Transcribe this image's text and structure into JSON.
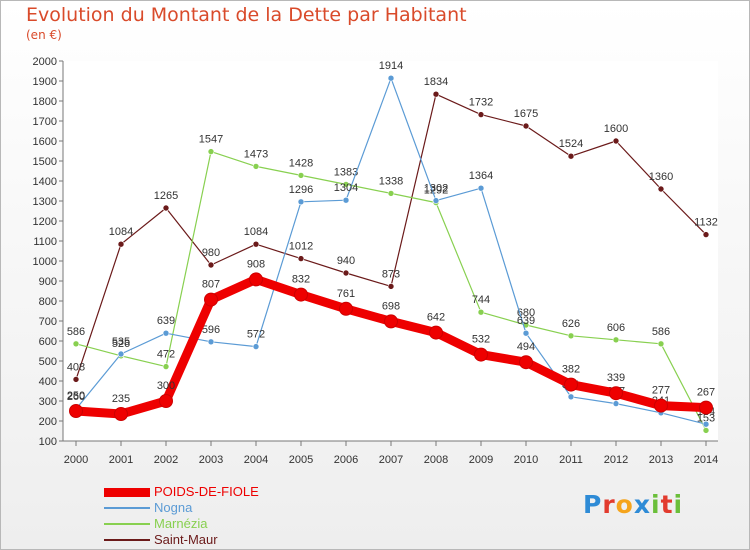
{
  "title": "Evolution du Montant de la Dette par Habitant",
  "unit": "(en €)",
  "brand": "Proxiti",
  "chart_data": {
    "type": "line",
    "title": "Evolution du Montant de la Dette par Habitant",
    "subtitle": "(en €)",
    "x": [
      2000,
      2001,
      2002,
      2003,
      2004,
      2005,
      2006,
      2007,
      2008,
      2009,
      2010,
      2011,
      2012,
      2013,
      2014
    ],
    "ylim": [
      100,
      2000
    ],
    "yticks": [
      100,
      200,
      300,
      400,
      500,
      600,
      700,
      800,
      900,
      1000,
      1100,
      1200,
      1300,
      1400,
      1500,
      1600,
      1700,
      1800,
      1900,
      2000
    ],
    "grid": false,
    "legend": "bottom-left",
    "series": [
      {
        "name": "Saint-Maur",
        "color": "#6b1a1a",
        "values": [
          408,
          1084,
          1265,
          980,
          1084,
          1012,
          940,
          873,
          1834,
          1732,
          1675,
          1524,
          1600,
          1360,
          1132
        ]
      },
      {
        "name": "Marnézia",
        "color": "#88d050",
        "values": [
          586,
          526,
          472,
          1547,
          1473,
          1428,
          1383,
          1338,
          1292,
          744,
          680,
          626,
          606,
          586,
          153
        ]
      },
      {
        "name": "Nogna",
        "color": "#5b9bd5",
        "values": [
          260,
          535,
          639,
          596,
          572,
          1296,
          1304,
          1914,
          1302,
          1364,
          639,
          321,
          287,
          241,
          184
        ]
      },
      {
        "name": "POIDS-DE-FIOLE",
        "color": "#ee0000",
        "values": [
          250,
          235,
          300,
          807,
          908,
          832,
          761,
          698,
          642,
          532,
          494,
          382,
          339,
          277,
          267
        ]
      }
    ]
  }
}
